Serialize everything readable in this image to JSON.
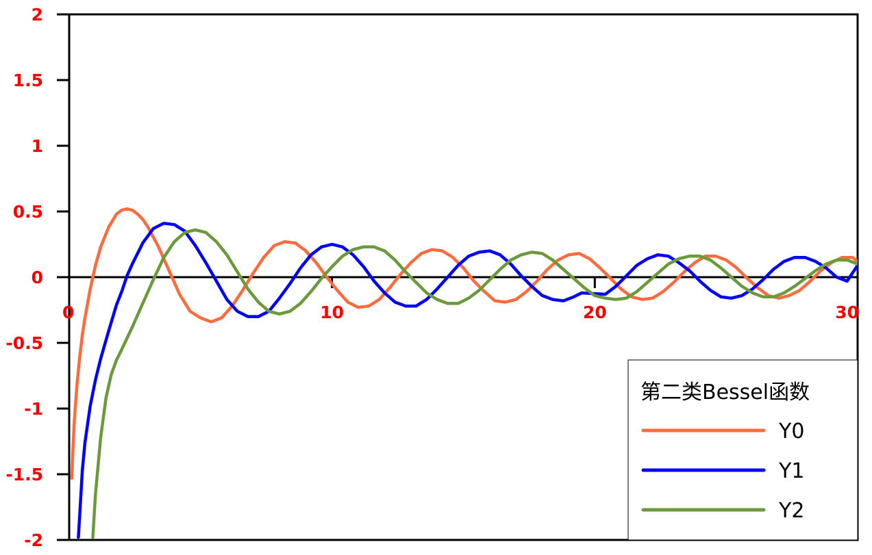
{
  "chart_data": {
    "type": "line",
    "title": "",
    "xlabel": "",
    "ylabel": "",
    "xlim": [
      0,
      30
    ],
    "ylim": [
      -2,
      2
    ],
    "x_ticks": [
      {
        "value": 0,
        "label": "0"
      },
      {
        "value": 10,
        "label": "10"
      },
      {
        "value": 20,
        "label": "20"
      },
      {
        "value": 30,
        "label": "30"
      }
    ],
    "y_ticks": [
      {
        "value": 2,
        "label": "2"
      },
      {
        "value": 1.5,
        "label": "1.5"
      },
      {
        "value": 1,
        "label": "1"
      },
      {
        "value": 0.5,
        "label": "0.5"
      },
      {
        "value": 0,
        "label": "0"
      },
      {
        "value": -0.5,
        "label": "-0.5"
      },
      {
        "value": -1,
        "label": "-1"
      },
      {
        "value": -1.5,
        "label": "-1.5"
      },
      {
        "value": -2,
        "label": "-2"
      }
    ],
    "tick_label_color": "#ff0000",
    "grid": false,
    "legend": {
      "title": "第二类Bessel函数",
      "position": "bottom-right"
    },
    "series": [
      {
        "name": "Y0",
        "color": "#ff6b3d",
        "points": [
          [
            0.1,
            -1.53
          ],
          [
            0.15,
            -1.27
          ],
          [
            0.2,
            -1.08
          ],
          [
            0.3,
            -0.81
          ],
          [
            0.4,
            -0.61
          ],
          [
            0.5,
            -0.44
          ],
          [
            0.6,
            -0.31
          ],
          [
            0.8,
            -0.09
          ],
          [
            1.0,
            0.09
          ],
          [
            1.2,
            0.23
          ],
          [
            1.5,
            0.38
          ],
          [
            1.8,
            0.48
          ],
          [
            2.0,
            0.51
          ],
          [
            2.2,
            0.52
          ],
          [
            2.4,
            0.51
          ],
          [
            2.6,
            0.48
          ],
          [
            2.8,
            0.44
          ],
          [
            3.0,
            0.38
          ],
          [
            3.4,
            0.23
          ],
          [
            3.8,
            0.05
          ],
          [
            4.2,
            -0.13
          ],
          [
            4.6,
            -0.26
          ],
          [
            5.0,
            -0.31
          ],
          [
            5.4,
            -0.34
          ],
          [
            5.8,
            -0.31
          ],
          [
            6.2,
            -0.22
          ],
          [
            6.6,
            -0.1
          ],
          [
            7.0,
            0.03
          ],
          [
            7.4,
            0.15
          ],
          [
            7.8,
            0.24
          ],
          [
            8.2,
            0.27
          ],
          [
            8.6,
            0.26
          ],
          [
            9.0,
            0.2
          ],
          [
            9.4,
            0.11
          ],
          [
            9.8,
            0.0
          ],
          [
            10.2,
            -0.1
          ],
          [
            10.6,
            -0.19
          ],
          [
            11.0,
            -0.23
          ],
          [
            11.4,
            -0.22
          ],
          [
            11.8,
            -0.17
          ],
          [
            12.2,
            -0.08
          ],
          [
            12.6,
            0.02
          ],
          [
            13.0,
            0.11
          ],
          [
            13.4,
            0.18
          ],
          [
            13.8,
            0.21
          ],
          [
            14.2,
            0.2
          ],
          [
            14.6,
            0.15
          ],
          [
            15.0,
            0.07
          ],
          [
            15.4,
            -0.03
          ],
          [
            15.8,
            -0.11
          ],
          [
            16.2,
            -0.18
          ],
          [
            16.6,
            -0.19
          ],
          [
            17.0,
            -0.17
          ],
          [
            17.4,
            -0.11
          ],
          [
            17.8,
            -0.03
          ],
          [
            18.2,
            0.06
          ],
          [
            18.6,
            0.13
          ],
          [
            19.0,
            0.17
          ],
          [
            19.4,
            0.18
          ],
          [
            19.8,
            0.14
          ],
          [
            20.2,
            0.07
          ],
          [
            20.6,
            -0.01
          ],
          [
            21.0,
            -0.09
          ],
          [
            21.4,
            -0.15
          ],
          [
            21.8,
            -0.17
          ],
          [
            22.2,
            -0.16
          ],
          [
            22.6,
            -0.11
          ],
          [
            23.0,
            -0.04
          ],
          [
            23.4,
            0.04
          ],
          [
            23.8,
            0.11
          ],
          [
            24.2,
            0.16
          ],
          [
            24.6,
            0.16
          ],
          [
            25.0,
            0.13
          ],
          [
            25.4,
            0.07
          ],
          [
            25.8,
            -0.01
          ],
          [
            26.2,
            -0.08
          ],
          [
            26.6,
            -0.14
          ],
          [
            27.0,
            -0.16
          ],
          [
            27.4,
            -0.14
          ],
          [
            27.8,
            -0.1
          ],
          [
            28.2,
            -0.03
          ],
          [
            28.6,
            0.05
          ],
          [
            29.0,
            0.11
          ],
          [
            29.4,
            0.15
          ],
          [
            29.8,
            0.15
          ],
          [
            30.0,
            0.12
          ]
        ]
      },
      {
        "name": "Y1",
        "color": "#0000ff",
        "points": [
          [
            0.35,
            -1.98
          ],
          [
            0.4,
            -1.82
          ],
          [
            0.5,
            -1.47
          ],
          [
            0.6,
            -1.26
          ],
          [
            0.8,
            -0.98
          ],
          [
            1.0,
            -0.78
          ],
          [
            1.2,
            -0.62
          ],
          [
            1.5,
            -0.41
          ],
          [
            1.8,
            -0.21
          ],
          [
            2.0,
            -0.11
          ],
          [
            2.2,
            0.01
          ],
          [
            2.4,
            0.1
          ],
          [
            2.8,
            0.26
          ],
          [
            3.2,
            0.37
          ],
          [
            3.6,
            0.41
          ],
          [
            4.0,
            0.4
          ],
          [
            4.4,
            0.35
          ],
          [
            4.8,
            0.24
          ],
          [
            5.2,
            0.11
          ],
          [
            5.6,
            -0.03
          ],
          [
            6.0,
            -0.17
          ],
          [
            6.4,
            -0.26
          ],
          [
            6.8,
            -0.3
          ],
          [
            7.2,
            -0.3
          ],
          [
            7.6,
            -0.26
          ],
          [
            8.0,
            -0.16
          ],
          [
            8.4,
            -0.05
          ],
          [
            8.8,
            0.07
          ],
          [
            9.2,
            0.17
          ],
          [
            9.6,
            0.23
          ],
          [
            10.0,
            0.25
          ],
          [
            10.4,
            0.23
          ],
          [
            10.8,
            0.17
          ],
          [
            11.2,
            0.08
          ],
          [
            11.6,
            -0.03
          ],
          [
            12.0,
            -0.12
          ],
          [
            12.4,
            -0.19
          ],
          [
            12.8,
            -0.22
          ],
          [
            13.2,
            -0.22
          ],
          [
            13.6,
            -0.17
          ],
          [
            14.0,
            -0.09
          ],
          [
            14.4,
            0.0
          ],
          [
            14.8,
            0.09
          ],
          [
            15.2,
            0.16
          ],
          [
            15.6,
            0.19
          ],
          [
            16.0,
            0.2
          ],
          [
            16.4,
            0.17
          ],
          [
            16.8,
            0.1
          ],
          [
            17.2,
            0.01
          ],
          [
            17.6,
            -0.07
          ],
          [
            18.0,
            -0.14
          ],
          [
            18.4,
            -0.17
          ],
          [
            18.8,
            -0.18
          ],
          [
            19.2,
            -0.15
          ],
          [
            19.5,
            -0.12
          ],
          [
            20.4,
            -0.13
          ],
          [
            20.8,
            -0.07
          ],
          [
            21.2,
            0.01
          ],
          [
            21.6,
            0.09
          ],
          [
            22.0,
            0.14
          ],
          [
            22.4,
            0.17
          ],
          [
            22.8,
            0.16
          ],
          [
            23.2,
            0.11
          ],
          [
            23.6,
            0.05
          ],
          [
            24.0,
            -0.03
          ],
          [
            24.4,
            -0.1
          ],
          [
            24.8,
            -0.15
          ],
          [
            25.2,
            -0.16
          ],
          [
            25.6,
            -0.14
          ],
          [
            26.0,
            -0.09
          ],
          [
            26.4,
            -0.02
          ],
          [
            26.8,
            0.06
          ],
          [
            27.2,
            0.12
          ],
          [
            27.6,
            0.15
          ],
          [
            28.0,
            0.15
          ],
          [
            28.4,
            0.12
          ],
          [
            28.8,
            0.07
          ],
          [
            29.2,
            0.0
          ],
          [
            29.6,
            -0.03
          ],
          [
            30.0,
            0.09
          ]
        ]
      },
      {
        "name": "Y2",
        "color": "#6a9a3a",
        "points": [
          [
            0.9,
            -1.98
          ],
          [
            1.0,
            -1.65
          ],
          [
            1.2,
            -1.22
          ],
          [
            1.4,
            -0.92
          ],
          [
            1.6,
            -0.74
          ],
          [
            1.8,
            -0.63
          ],
          [
            2.0,
            -0.55
          ],
          [
            2.4,
            -0.38
          ],
          [
            2.8,
            -0.2
          ],
          [
            3.2,
            -0.02
          ],
          [
            3.6,
            0.15
          ],
          [
            4.0,
            0.27
          ],
          [
            4.4,
            0.34
          ],
          [
            4.8,
            0.36
          ],
          [
            5.2,
            0.34
          ],
          [
            5.6,
            0.27
          ],
          [
            6.0,
            0.17
          ],
          [
            6.4,
            0.04
          ],
          [
            6.8,
            -0.09
          ],
          [
            7.2,
            -0.19
          ],
          [
            7.6,
            -0.26
          ],
          [
            8.0,
            -0.28
          ],
          [
            8.4,
            -0.26
          ],
          [
            8.8,
            -0.2
          ],
          [
            9.2,
            -0.11
          ],
          [
            9.6,
            -0.01
          ],
          [
            10.0,
            0.08
          ],
          [
            10.4,
            0.16
          ],
          [
            10.8,
            0.21
          ],
          [
            11.2,
            0.23
          ],
          [
            11.6,
            0.23
          ],
          [
            12.0,
            0.2
          ],
          [
            12.4,
            0.13
          ],
          [
            12.8,
            0.04
          ],
          [
            13.2,
            -0.04
          ],
          [
            13.6,
            -0.12
          ],
          [
            14.0,
            -0.17
          ],
          [
            14.4,
            -0.2
          ],
          [
            14.8,
            -0.2
          ],
          [
            15.2,
            -0.16
          ],
          [
            15.6,
            -0.1
          ],
          [
            16.0,
            -0.02
          ],
          [
            16.4,
            0.06
          ],
          [
            16.8,
            0.13
          ],
          [
            17.2,
            0.17
          ],
          [
            17.6,
            0.19
          ],
          [
            18.0,
            0.18
          ],
          [
            18.4,
            0.13
          ],
          [
            18.8,
            0.06
          ],
          [
            19.2,
            -0.01
          ],
          [
            19.6,
            -0.08
          ],
          [
            20.0,
            -0.14
          ],
          [
            20.4,
            -0.16
          ],
          [
            20.8,
            -0.17
          ],
          [
            21.2,
            -0.16
          ],
          [
            21.6,
            -0.11
          ],
          [
            22.0,
            -0.04
          ],
          [
            22.4,
            0.03
          ],
          [
            22.8,
            0.1
          ],
          [
            23.2,
            0.14
          ],
          [
            23.6,
            0.16
          ],
          [
            24.0,
            0.16
          ],
          [
            24.4,
            0.13
          ],
          [
            24.8,
            0.07
          ],
          [
            25.2,
            0.0
          ],
          [
            25.6,
            -0.07
          ],
          [
            26.0,
            -0.12
          ],
          [
            26.4,
            -0.15
          ],
          [
            26.8,
            -0.15
          ],
          [
            27.2,
            -0.12
          ],
          [
            27.6,
            -0.07
          ],
          [
            28.0,
            -0.01
          ],
          [
            28.4,
            0.05
          ],
          [
            28.8,
            0.1
          ],
          [
            29.2,
            0.13
          ],
          [
            29.6,
            0.13
          ],
          [
            30.0,
            0.1
          ]
        ]
      }
    ]
  }
}
